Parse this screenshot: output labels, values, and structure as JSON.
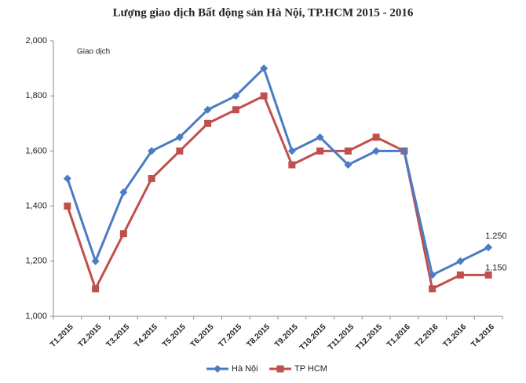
{
  "chart_data": {
    "type": "line",
    "title": "Lượng giao dịch Bất động sản Hà Nội, TP.HCM 2015 - 2016",
    "y_label": "Giao dịch",
    "categories": [
      "T1.2015",
      "T2.2015",
      "T3.2015",
      "T4.2015",
      "T5.2015",
      "T6.2015",
      "T7.2015",
      "T8.2015",
      "T9.2015",
      "T10.2015",
      "T11.2015",
      "T12.2015",
      "T1.2016",
      "T2.2016",
      "T3.2016",
      "T4.2016"
    ],
    "series": [
      {
        "name": "Hà Nội",
        "color": "#4a7cc4",
        "marker": "diamond",
        "values": [
          1500,
          1200,
          1450,
          1600,
          1650,
          1750,
          1800,
          1900,
          1600,
          1650,
          1550,
          1600,
          1600,
          1150,
          1200,
          1250
        ],
        "value_labels": [
          null,
          null,
          null,
          null,
          null,
          null,
          null,
          null,
          null,
          null,
          null,
          null,
          null,
          null,
          null,
          "1.250"
        ]
      },
      {
        "name": "TP HCM",
        "color": "#c0504d",
        "marker": "square",
        "values": [
          1400,
          1100,
          1300,
          1500,
          1600,
          1700,
          1750,
          1800,
          1550,
          1600,
          1600,
          1650,
          1600,
          1100,
          1150,
          1150
        ],
        "value_labels": [
          null,
          null,
          null,
          null,
          null,
          null,
          null,
          null,
          null,
          null,
          null,
          null,
          null,
          null,
          null,
          "1.150"
        ]
      }
    ],
    "ylim": [
      1000,
      2000
    ],
    "yticks": [
      {
        "value": 1000,
        "label": "1,000"
      },
      {
        "value": 1200,
        "label": "1,200"
      },
      {
        "value": 1400,
        "label": "1,400"
      },
      {
        "value": 1600,
        "label": "1,600"
      },
      {
        "value": 1800,
        "label": "1,800"
      },
      {
        "value": 2000,
        "label": "2,000"
      }
    ],
    "grid": false,
    "legend": "bottom"
  }
}
